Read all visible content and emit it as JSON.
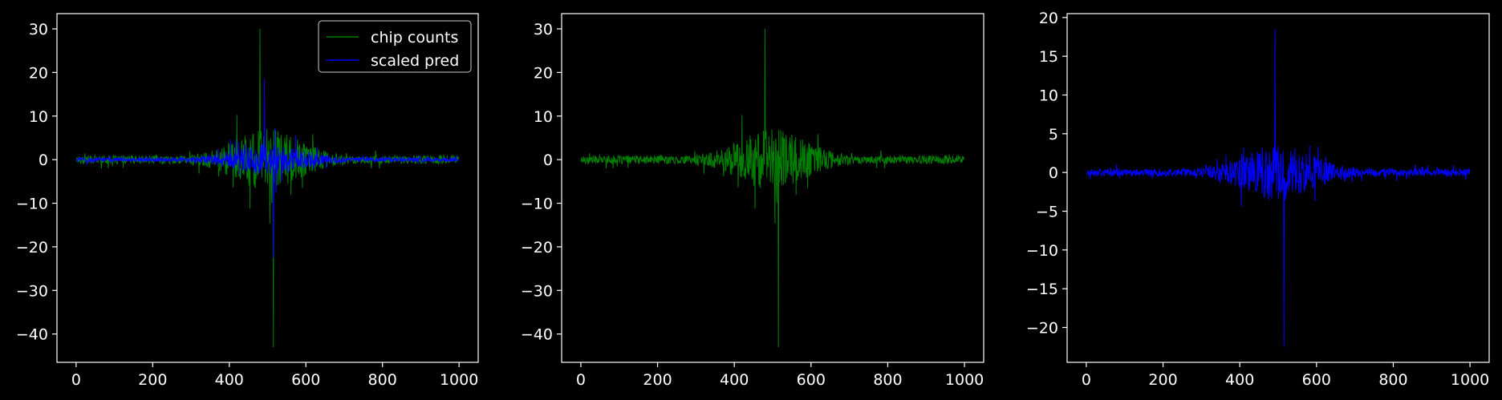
{
  "colors": {
    "background": "#000000",
    "axes": "#ffffff",
    "green": "#008000",
    "blue": "#0000ff"
  },
  "chart_data": [
    {
      "type": "line",
      "xlim": [
        -50,
        1050
      ],
      "ylim": [
        -46.5,
        33.5
      ],
      "xticks": [
        0,
        200,
        400,
        600,
        800,
        1000
      ],
      "yticks": [
        -40,
        -30,
        -20,
        -10,
        0,
        10,
        20,
        30
      ],
      "legend": {
        "placement": "top-right",
        "entries": [
          "chip counts",
          "scaled pred"
        ]
      },
      "series": [
        {
          "name": "chip counts",
          "color": "#008000",
          "n": 1000,
          "peak": 30,
          "trough": -43,
          "peak_x": 480,
          "trough_x": 515,
          "active_range": [
            300,
            700
          ]
        },
        {
          "name": "scaled pred",
          "color": "#0000ff",
          "n": 1000,
          "peak": 18.5,
          "trough": -22.5,
          "peak_x": 492,
          "trough_x": 515,
          "active_range": [
            300,
            700
          ]
        }
      ]
    },
    {
      "type": "line",
      "xlim": [
        -50,
        1050
      ],
      "ylim": [
        -46.5,
        33.5
      ],
      "xticks": [
        0,
        200,
        400,
        600,
        800,
        1000
      ],
      "yticks": [
        -40,
        -30,
        -20,
        -10,
        0,
        10,
        20,
        30
      ],
      "series": [
        {
          "color": "#008000",
          "n": 1000,
          "peak": 30,
          "trough": -43,
          "peak_x": 480,
          "trough_x": 515,
          "active_range": [
            300,
            700
          ]
        }
      ]
    },
    {
      "type": "line",
      "xlim": [
        -50,
        1050
      ],
      "ylim": [
        -24.5,
        20.5
      ],
      "xticks": [
        0,
        200,
        400,
        600,
        800,
        1000
      ],
      "yticks": [
        -20,
        -15,
        -10,
        -5,
        0,
        5,
        10,
        15,
        20
      ],
      "series": [
        {
          "color": "#0000ff",
          "n": 1000,
          "peak": 18.5,
          "trough": -22.5,
          "peak_x": 492,
          "trough_x": 515,
          "active_range": [
            300,
            700
          ]
        }
      ]
    }
  ]
}
